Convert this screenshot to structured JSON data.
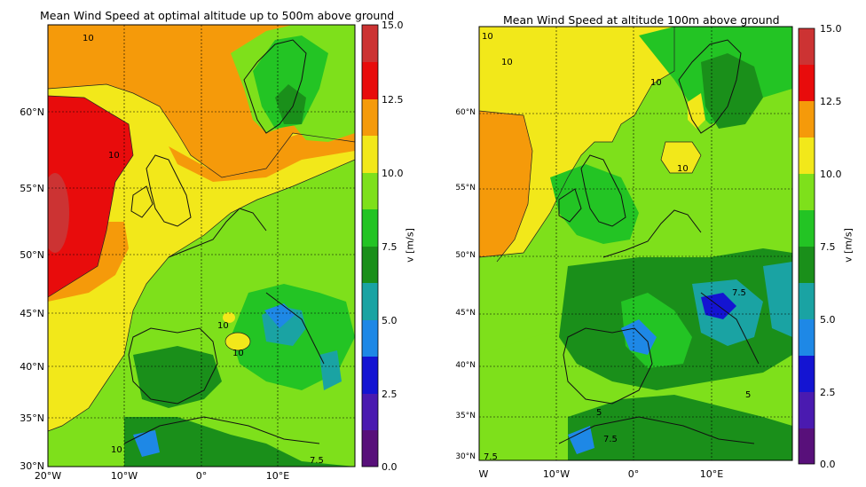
{
  "maps": [
    {
      "title": "Mean Wind Speed at optimal altitude up to 500m above ground",
      "lat_labels": [
        "60°N",
        "55°N",
        "50°N",
        "45°N",
        "40°N",
        "35°N",
        "30°N"
      ],
      "lon_labels": [
        "20°W",
        "10°W",
        "0°",
        "10°E"
      ],
      "contour_labels": [
        "10",
        "10",
        "10",
        "10",
        "7.5",
        "10"
      ],
      "colorbar": {
        "ticks": [
          "15.0",
          "12.5",
          "10.0",
          "7.5",
          "5.0",
          "2.5",
          "0.0"
        ],
        "label": "v [m/s]"
      }
    },
    {
      "title": "Mean Wind Speed at altitude 100m above ground",
      "lat_labels": [
        "60°N",
        "55°N",
        "50°N",
        "45°N",
        "40°N",
        "35°N",
        "30°N"
      ],
      "lon_labels": [
        "W",
        "10°W",
        "0°",
        "10°E"
      ],
      "contour_labels": [
        "10",
        "10",
        "10",
        "10",
        "7.5",
        "5",
        "7.5",
        "7.5",
        "5"
      ],
      "colorbar": {
        "ticks": [
          "15.0",
          "12.5",
          "10.0",
          "7.5",
          "5.0",
          "2.5",
          "0.0"
        ],
        "label": "v [m/s]"
      }
    }
  ],
  "colors": {
    "c15": "#cc3333",
    "c13": "#e80c0c",
    "c12": "#f59a0a",
    "c11": "#f2e81a",
    "c10": "#7ee01b",
    "c9": "#23c424",
    "c8": "#1a8f1a",
    "c6": "#1aa3a3",
    "c5": "#1e88e6",
    "c4": "#1414d2",
    "c3": "#4a1ab0",
    "c2": "#58107a"
  }
}
